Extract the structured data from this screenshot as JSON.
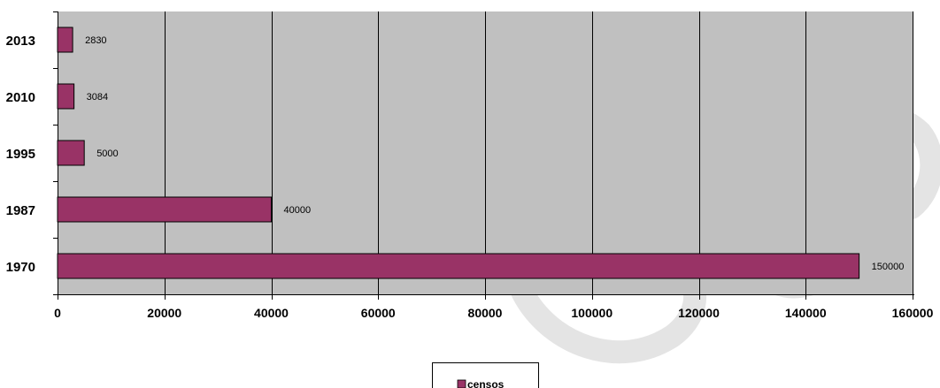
{
  "chart_data": {
    "type": "bar",
    "orientation": "horizontal",
    "categories": [
      "1970",
      "1987",
      "1995",
      "2010",
      "2013"
    ],
    "series": [
      {
        "name": "censos",
        "values": [
          150000,
          40000,
          5000,
          3084,
          2830
        ]
      }
    ],
    "data_labels": [
      "150000",
      "40000",
      "5000",
      "3084",
      "2830"
    ],
    "xlim": [
      0,
      160000
    ],
    "x_ticks": [
      0,
      20000,
      40000,
      60000,
      80000,
      100000,
      120000,
      140000,
      160000
    ],
    "x_tick_labels": [
      "0",
      "20000",
      "40000",
      "60000",
      "80000",
      "100000",
      "120000",
      "140000",
      "160000"
    ],
    "grid": true,
    "legend": {
      "placement": "bottom",
      "entries": [
        "censos"
      ]
    },
    "colors": {
      "bar": "#993366",
      "plot_background": "#c0c0c0"
    },
    "title": "",
    "xlabel": "",
    "ylabel": ""
  }
}
